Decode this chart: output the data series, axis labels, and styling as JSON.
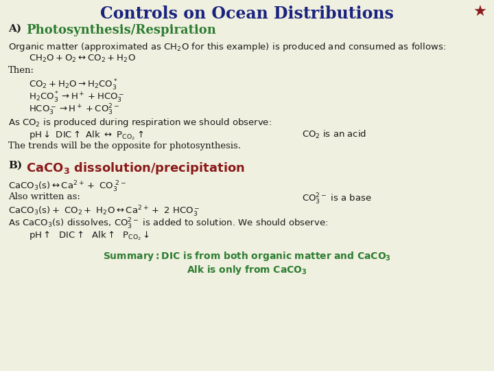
{
  "title": "Controls on Ocean Distributions",
  "title_color": "#1a237e",
  "title_fontsize": 17,
  "bg_color": "#f0f0e0",
  "star_color": "#8b1a1a",
  "section_A_label": "A) ",
  "section_A_text": "Photosynthesis/Respiration",
  "section_A_color": "#2e7d32",
  "section_B_label": "B) ",
  "section_B_text": "$\\mathbf{CaCO_3}$ dissolution/precipitation",
  "section_B_color": "#8b1a1a",
  "summary_line1": "Summary: DIC is from both organic matter and $\\mathbf{CaCO_3}$",
  "summary_line2": "$\\mathbf{Alk\\ is\\ only\\ from\\ CaCO_3}$",
  "summary_color": "#2e7d32",
  "text_color": "#1a1a1a",
  "body_fontsize": 9.5,
  "indent1": 0.018,
  "indent2": 0.06
}
